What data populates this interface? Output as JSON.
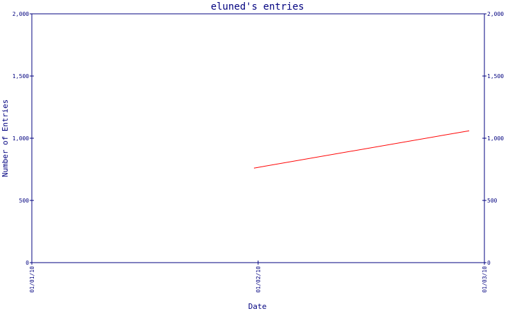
{
  "chart_data": {
    "type": "line",
    "title": "eluned's entries",
    "xlabel": "Date",
    "ylabel": "Number of Entries",
    "x_ticks": [
      "01/01/10",
      "01/02/10",
      "01/03/10"
    ],
    "y_ticks": [
      "0",
      "500",
      "1,000",
      "1,500",
      "2,000"
    ],
    "ylim": [
      0,
      2000
    ],
    "grid": false,
    "series": [
      {
        "x": [
          "01/02/10",
          "01/03/10"
        ],
        "y": [
          760,
          1060
        ]
      }
    ]
  },
  "colors": {
    "axis": "#00007f",
    "series": "#ff0000"
  }
}
